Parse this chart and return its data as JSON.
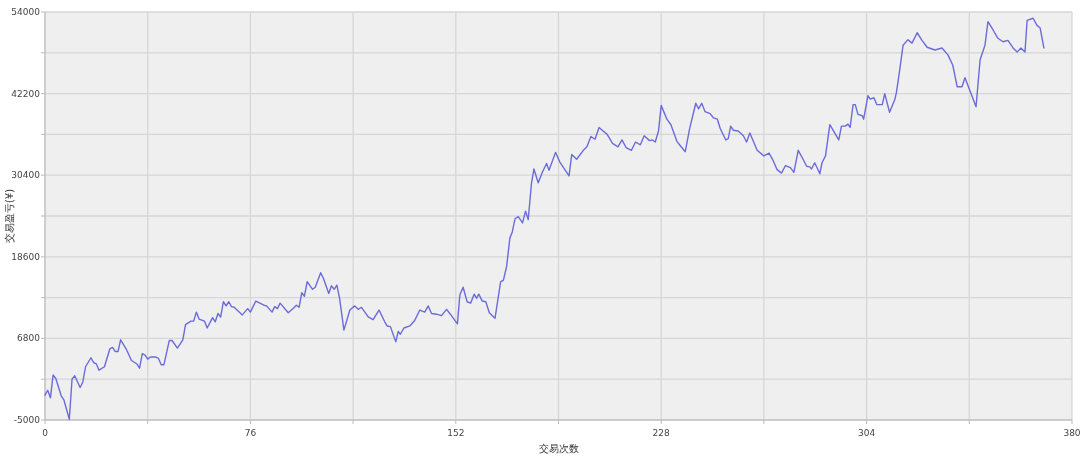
{
  "chart_data": {
    "type": "line",
    "xlabel": "交易次数",
    "ylabel": "交易盈亏(¥)",
    "xlim": [
      0,
      380
    ],
    "ylim": [
      -5000,
      54000
    ],
    "xticks": [
      0,
      {
        "value": 38,
        "label": null
      },
      76,
      {
        "value": 114,
        "label": null
      },
      152,
      {
        "value": 190,
        "label": null
      },
      228,
      {
        "value": 266,
        "label": null
      },
      304,
      {
        "value": 342,
        "label": null
      },
      380
    ],
    "yticks": [
      -5000,
      {
        "value": 900,
        "label": null
      },
      6800,
      {
        "value": 12700,
        "label": null
      },
      18600,
      {
        "value": 24500,
        "label": null
      },
      30400,
      {
        "value": 36300,
        "label": null
      },
      42200,
      {
        "value": 48100,
        "label": null
      },
      54000
    ],
    "grid": true,
    "marker": "none",
    "line_style": "solid",
    "series": [
      {
        "color": "#6b6bd9",
        "x": [
          0,
          1,
          2,
          3,
          4,
          6,
          7,
          9,
          10,
          11,
          13,
          14,
          15,
          17,
          18,
          19,
          20,
          22,
          24,
          25,
          26,
          27,
          28,
          30,
          32,
          34,
          35,
          36,
          37,
          38,
          39,
          41,
          42,
          43,
          44,
          46,
          47,
          49,
          51,
          52,
          54,
          55,
          56,
          57,
          59,
          60,
          62,
          63,
          64,
          65,
          66,
          67,
          68,
          69,
          70,
          73,
          75,
          76,
          78,
          81,
          82,
          84,
          85,
          86,
          87,
          90,
          92,
          93,
          94,
          95,
          96,
          97,
          99,
          100,
          102,
          103,
          105,
          106,
          107,
          108,
          109,
          110.6,
          112.8,
          114.6,
          115.9,
          117.1,
          119.6,
          121.4,
          123.6,
          125.7,
          126.6,
          127.8,
          129.8,
          130.7,
          131.5,
          132.8,
          135,
          136.8,
          138.7,
          140.5,
          141.8,
          143,
          144.9,
          146.7,
          148.6,
          150,
          152.6,
          153.5,
          154.7,
          156.2,
          157.5,
          158.8,
          159.7,
          160.5,
          161.8,
          163.1,
          164.4,
          166.5,
          168.6,
          169.6,
          170.8,
          172,
          172.9,
          173.9,
          175.1,
          176.7,
          177.8,
          178.8,
          180,
          180.9,
          182.5,
          184.1,
          185.6,
          186.5,
          188.9,
          190.5,
          193.9,
          194.9,
          196.7,
          199.2,
          200.5,
          202,
          203.5,
          205,
          206.5,
          208,
          210,
          212,
          213.5,
          215,
          217,
          218.5,
          220.3,
          221.7,
          223.7,
          224.8,
          225.8,
          227,
          228,
          230.1,
          231.6,
          233.8,
          235,
          236.9,
          238.5,
          240.8,
          241.8,
          243,
          244.2,
          246.1,
          247.3,
          248.8,
          249.8,
          251.9,
          252.8,
          253.7,
          254.7,
          256.5,
          258.4,
          259.6,
          260.8,
          263.5,
          266,
          267.9,
          269.2,
          270.9,
          272.5,
          274,
          275.8,
          277.1,
          278.7,
          280.5,
          281.8,
          283,
          283.6,
          284.8,
          286.7,
          287.5,
          288.8,
          290.4,
          293.7,
          294.7,
          296.1,
          297.1,
          297.9,
          299,
          299.8,
          300.8,
          302.4,
          302.9,
          304.5,
          305.3,
          306.7,
          307.8,
          309.8,
          310.7,
          312.5,
          314.4,
          315,
          316,
          317.5,
          319.3,
          320.8,
          322.7,
          324.5,
          326.4,
          329.3,
          331.9,
          334.1,
          335.9,
          337.5,
          339.3,
          340.4,
          344.5,
          346,
          347.8,
          348.9,
          350.8,
          352.6,
          354.5,
          356.3,
          358.2,
          359.7,
          361.1,
          362.6,
          363.4,
          365.6,
          367,
          368.2,
          369.6
        ],
        "values": [
          -1400,
          -700,
          -1800,
          1500,
          1000,
          -1500,
          -2100,
          -4900,
          900,
          1400,
          -300,
          500,
          2700,
          4000,
          3300,
          3100,
          2200,
          2700,
          5300,
          5500,
          4900,
          4900,
          6600,
          5300,
          3600,
          3100,
          2500,
          4600,
          4400,
          3800,
          4100,
          4100,
          3900,
          3000,
          3000,
          6500,
          6500,
          5400,
          6600,
          8800,
          9300,
          9300,
          10600,
          9600,
          9300,
          8300,
          9800,
          9200,
          10400,
          9900,
          12100,
          11500,
          12100,
          11400,
          11300,
          10200,
          11100,
          10600,
          12200,
          11600,
          11500,
          10600,
          11400,
          11100,
          11900,
          10500,
          11200,
          11600,
          11300,
          13400,
          12900,
          15000,
          13900,
          14200,
          16300,
          15500,
          13300,
          14400,
          13900,
          14500,
          12600,
          8000,
          10900,
          11500,
          11000,
          11300,
          9900,
          9500,
          10900,
          9200,
          8600,
          8500,
          6300,
          7800,
          7400,
          8300,
          8600,
          9400,
          10900,
          10600,
          11500,
          10400,
          10300,
          10100,
          11000,
          10300,
          8900,
          13100,
          14200,
          12100,
          11900,
          13200,
          12600,
          13200,
          12200,
          12100,
          10500,
          9700,
          15000,
          15200,
          17200,
          21300,
          22200,
          24100,
          24400,
          23500,
          25200,
          24000,
          29200,
          31300,
          29300,
          30900,
          32100,
          31100,
          33700,
          32300,
          30300,
          33400,
          32700,
          34000,
          34500,
          36000,
          35600,
          37300,
          36800,
          36300,
          35000,
          34500,
          35500,
          34400,
          34000,
          35200,
          34800,
          36100,
          35400,
          35500,
          35200,
          36800,
          40500,
          38500,
          37700,
          35300,
          34700,
          33800,
          37100,
          40800,
          40000,
          40800,
          39600,
          39300,
          38700,
          38500,
          37200,
          35500,
          35700,
          37500,
          36900,
          36800,
          36100,
          35200,
          36500,
          34000,
          33200,
          33600,
          32700,
          31200,
          30700,
          31800,
          31500,
          30800,
          34000,
          32700,
          31700,
          31600,
          31300,
          32200,
          30600,
          32200,
          33200,
          37700,
          35500,
          37500,
          37500,
          37800,
          37300,
          40600,
          40600,
          39200,
          39000,
          38500,
          41900,
          41400,
          41600,
          40600,
          40600,
          42200,
          39500,
          41300,
          42300,
          44900,
          49200,
          50000,
          49500,
          51000,
          49900,
          48900,
          48500,
          48800,
          47800,
          46300,
          43200,
          43200,
          44500,
          40300,
          47100,
          49200,
          52600,
          51400,
          50200,
          49700,
          49900,
          48800,
          48200,
          48800,
          48200,
          52800,
          53100,
          52100,
          51700,
          48800
        ]
      }
    ]
  }
}
